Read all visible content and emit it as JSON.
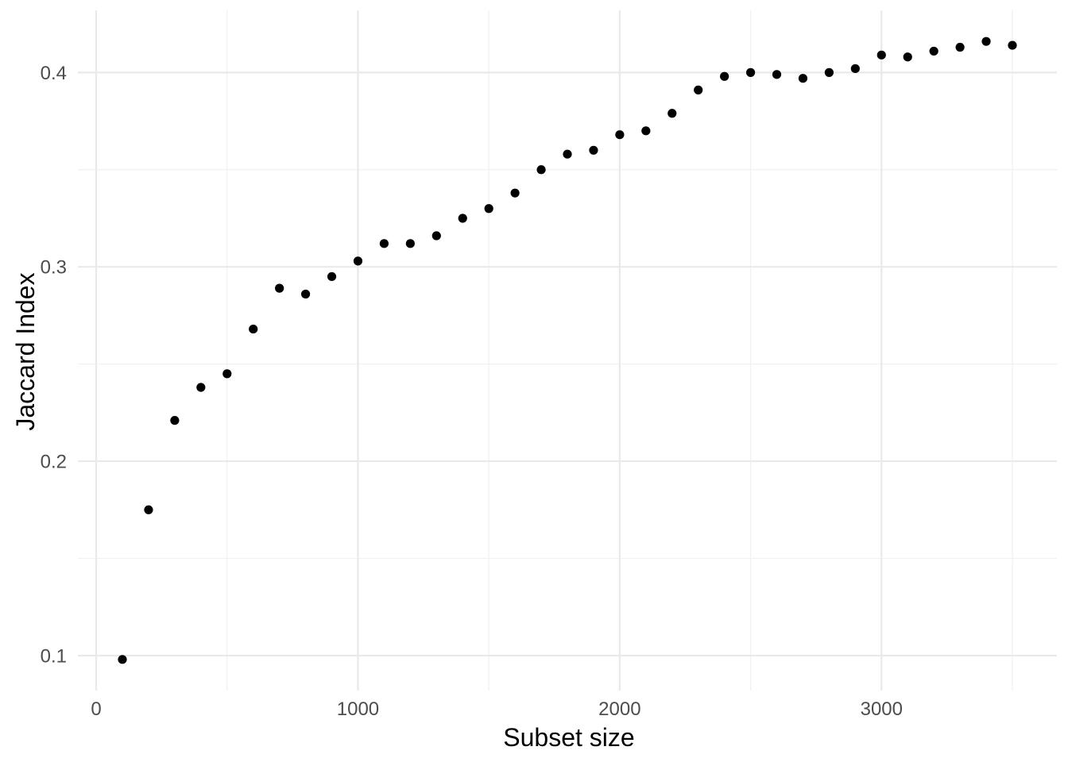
{
  "figure": {
    "background": "#FFFFFF"
  },
  "chart_data": {
    "type": "scatter",
    "title": "",
    "xlabel": "Subset size",
    "ylabel": "Jaccard Index",
    "x": [
      100,
      200,
      300,
      400,
      500,
      600,
      700,
      800,
      900,
      1000,
      1100,
      1200,
      1300,
      1400,
      1500,
      1600,
      1700,
      1800,
      1900,
      2000,
      2100,
      2200,
      2300,
      2400,
      2500,
      2600,
      2700,
      2800,
      2900,
      3000,
      3100,
      3200,
      3300,
      3400,
      3500
    ],
    "y": [
      0.098,
      0.175,
      0.221,
      0.238,
      0.245,
      0.268,
      0.289,
      0.286,
      0.295,
      0.303,
      0.312,
      0.312,
      0.316,
      0.325,
      0.33,
      0.338,
      0.35,
      0.358,
      0.36,
      0.368,
      0.37,
      0.379,
      0.391,
      0.398,
      0.4,
      0.399,
      0.397,
      0.4,
      0.402,
      0.409,
      0.408,
      0.411,
      0.413,
      0.416,
      0.414
    ],
    "xlim": [
      -70,
      3670
    ],
    "ylim": [
      0.082,
      0.432
    ],
    "x_ticks_major": [
      0,
      1000,
      2000,
      3000
    ],
    "x_tick_labels": [
      "0",
      "1000",
      "2000",
      "3000"
    ],
    "x_ticks_minor": [
      500,
      1500,
      2500,
      3500
    ],
    "y_ticks_major": [
      0.1,
      0.2,
      0.3,
      0.4
    ],
    "y_tick_labels": [
      "0.1",
      "0.2",
      "0.3",
      "0.4"
    ],
    "y_ticks_minor": [
      0.15,
      0.25,
      0.35
    ],
    "grid": "major+minor",
    "legend": false,
    "colors": {
      "point": "#000000",
      "grid_major": "#E9E9E9",
      "grid_minor": "#F1F1F1",
      "tick_label": "#4D4D4D",
      "axis_title": "#000000",
      "background": "#FFFFFF"
    }
  }
}
